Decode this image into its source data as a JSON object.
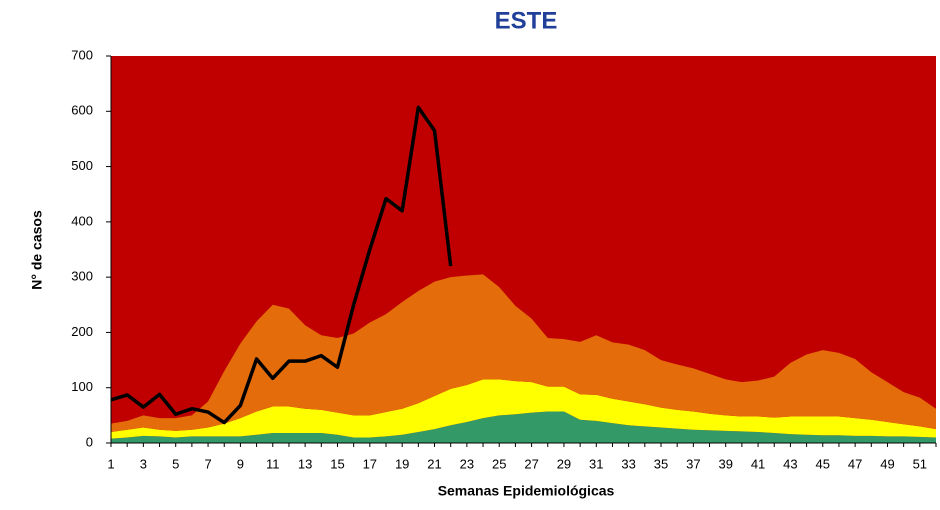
{
  "chart_data": {
    "type": "stacked-area-line",
    "title": "ESTE",
    "x_label": "Semanas Epidemiológicas",
    "y_label": "N° de casos",
    "categories": [
      "1",
      null,
      "3",
      null,
      "5",
      null,
      "7",
      null,
      "9",
      null,
      "11",
      null,
      "13",
      null,
      "15",
      null,
      "17",
      null,
      "19",
      null,
      "21",
      null,
      "23",
      null,
      "25",
      null,
      "27",
      null,
      "29",
      null,
      "31",
      null,
      "33",
      null,
      "35",
      null,
      "37",
      null,
      "39",
      null,
      "41",
      null,
      "43",
      null,
      "45",
      null,
      "47",
      null,
      "49",
      null,
      "51",
      null
    ],
    "ylim": [
      0,
      700
    ],
    "yticks": [
      0,
      100,
      200,
      300,
      400,
      500,
      600,
      700
    ],
    "plot_background": "#c00000",
    "series": [
      {
        "type": "area",
        "color": "#339966",
        "values": [
          8,
          10,
          13,
          12,
          10,
          12,
          12,
          12,
          12,
          15,
          18,
          18,
          18,
          18,
          15,
          10,
          10,
          12,
          15,
          20,
          25,
          32,
          38,
          45,
          50,
          52,
          55,
          57,
          57,
          42,
          40,
          36,
          32,
          30,
          28,
          26,
          24,
          23,
          22,
          21,
          20,
          18,
          16,
          15,
          14,
          14,
          13,
          13,
          12,
          12,
          11,
          10
        ]
      },
      {
        "type": "area",
        "color": "#ffff00",
        "values": [
          12,
          14,
          15,
          12,
          12,
          12,
          16,
          23,
          33,
          42,
          48,
          48,
          44,
          42,
          40,
          40,
          40,
          44,
          47,
          52,
          60,
          66,
          67,
          70,
          65,
          60,
          55,
          45,
          45,
          46,
          47,
          44,
          43,
          40,
          36,
          34,
          33,
          30,
          28,
          27,
          28,
          28,
          32,
          33,
          34,
          34,
          32,
          29,
          26,
          22,
          19,
          15
        ]
      },
      {
        "type": "area",
        "color": "#e46c0a",
        "values": [
          15,
          16,
          22,
          21,
          23,
          26,
          47,
          95,
          135,
          163,
          184,
          177,
          151,
          135,
          135,
          148,
          168,
          177,
          193,
          203,
          207,
          202,
          198,
          190,
          167,
          136,
          115,
          88,
          86,
          95,
          108,
          102,
          103,
          98,
          86,
          82,
          78,
          72,
          65,
          62,
          65,
          74,
          97,
          112,
          120,
          115,
          107,
          86,
          72,
          58,
          52,
          37
        ]
      },
      {
        "type": "line",
        "color": "#000000",
        "values": [
          78,
          87,
          65,
          88,
          52,
          62,
          56,
          37,
          68,
          152,
          117,
          148,
          148,
          158,
          137,
          250,
          350,
          442,
          420,
          607,
          565,
          320,
          null,
          null,
          null,
          null,
          null,
          null,
          null,
          null,
          null,
          null,
          null,
          null,
          null,
          null,
          null,
          null,
          null,
          null,
          null,
          null,
          null,
          null,
          null,
          null,
          null,
          null,
          null,
          null,
          null,
          null
        ]
      }
    ]
  }
}
